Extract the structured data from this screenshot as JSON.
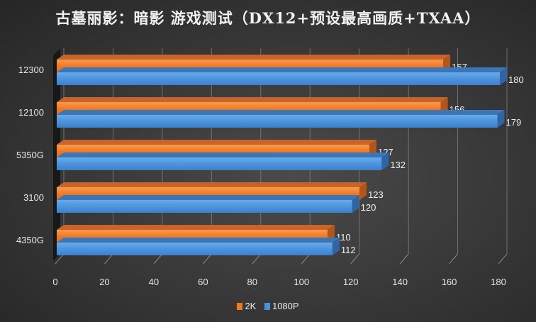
{
  "title": "古墓丽影：暗影 游戏测试（DX12+预设最高画质+TXAA）",
  "colors": {
    "2K": "#f07820",
    "1080P": "#4a90d9"
  },
  "legend": [
    {
      "label": "2K",
      "color": "#f07820"
    },
    {
      "label": "1080P",
      "color": "#4a90d9"
    }
  ],
  "chart_data": {
    "type": "bar",
    "orientation": "horizontal",
    "title": "古墓丽影：暗影 游戏测试（DX12+预设最高画质+TXAA）",
    "categories": [
      "12300",
      "12100",
      "5350G",
      "3100",
      "4350G"
    ],
    "series": [
      {
        "name": "2K",
        "values": [
          157,
          156,
          127,
          123,
          110
        ]
      },
      {
        "name": "1080P",
        "values": [
          180,
          179,
          132,
          120,
          112
        ]
      }
    ],
    "xlabel": "",
    "ylabel": "",
    "xlim": [
      0,
      180
    ],
    "xticks": [
      0,
      20,
      40,
      60,
      80,
      100,
      120,
      140,
      160,
      180
    ],
    "grid": true,
    "legend_position": "bottom",
    "data_labels": true
  }
}
